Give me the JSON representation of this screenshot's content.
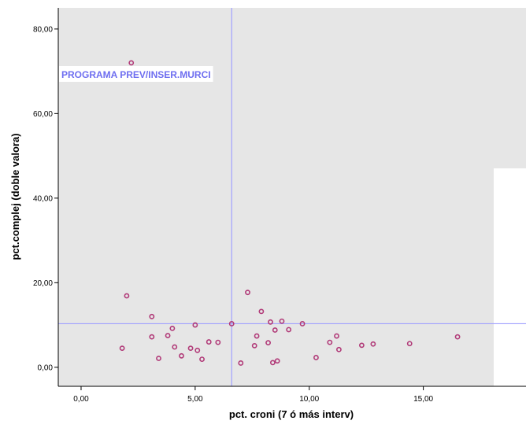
{
  "chart_data": {
    "type": "scatter",
    "xlabel": "pct. croni (7 ó más interv)",
    "ylabel": "pct.complej (doble valora)",
    "xlim": [
      -1.0,
      19.5
    ],
    "ylim": [
      -4.5,
      85.0
    ],
    "x_ticks": [
      {
        "value": 0,
        "label": "0,00"
      },
      {
        "value": 5,
        "label": "5,00"
      },
      {
        "value": 10,
        "label": "10,00"
      },
      {
        "value": 15,
        "label": "15,00"
      }
    ],
    "y_ticks": [
      {
        "value": 0,
        "label": "0,00"
      },
      {
        "value": 20,
        "label": "20,00"
      },
      {
        "value": 40,
        "label": "40,00"
      },
      {
        "value": 60,
        "label": "60,00"
      },
      {
        "value": 80,
        "label": "80,00"
      }
    ],
    "reference_lines": {
      "x": 6.6,
      "y": 10.3
    },
    "annotation": {
      "text": "PROGRAMA PREV/INSER.MURCI",
      "x": 2.2,
      "y": 72.0
    },
    "points": [
      {
        "x": 2.2,
        "y": 72.0
      },
      {
        "x": 1.8,
        "y": 4.5
      },
      {
        "x": 2.0,
        "y": 16.9
      },
      {
        "x": 3.1,
        "y": 12.0
      },
      {
        "x": 3.1,
        "y": 7.2
      },
      {
        "x": 3.4,
        "y": 2.1
      },
      {
        "x": 3.8,
        "y": 7.5
      },
      {
        "x": 4.0,
        "y": 9.2
      },
      {
        "x": 4.1,
        "y": 4.8
      },
      {
        "x": 4.4,
        "y": 2.7
      },
      {
        "x": 4.8,
        "y": 4.5
      },
      {
        "x": 5.0,
        "y": 10.0
      },
      {
        "x": 5.1,
        "y": 4.0
      },
      {
        "x": 5.3,
        "y": 1.9
      },
      {
        "x": 5.6,
        "y": 6.0
      },
      {
        "x": 6.0,
        "y": 5.9
      },
      {
        "x": 6.6,
        "y": 10.3
      },
      {
        "x": 7.0,
        "y": 1.0
      },
      {
        "x": 7.3,
        "y": 17.7
      },
      {
        "x": 7.6,
        "y": 5.1
      },
      {
        "x": 7.7,
        "y": 7.4
      },
      {
        "x": 7.9,
        "y": 13.2
      },
      {
        "x": 8.2,
        "y": 5.8
      },
      {
        "x": 8.3,
        "y": 10.7
      },
      {
        "x": 8.4,
        "y": 1.1
      },
      {
        "x": 8.5,
        "y": 8.8
      },
      {
        "x": 8.6,
        "y": 1.5
      },
      {
        "x": 8.8,
        "y": 10.9
      },
      {
        "x": 9.1,
        "y": 8.9
      },
      {
        "x": 9.7,
        "y": 10.3
      },
      {
        "x": 10.3,
        "y": 2.3
      },
      {
        "x": 10.9,
        "y": 5.9
      },
      {
        "x": 11.2,
        "y": 7.4
      },
      {
        "x": 11.3,
        "y": 4.2
      },
      {
        "x": 12.3,
        "y": 5.2
      },
      {
        "x": 12.8,
        "y": 5.5
      },
      {
        "x": 14.4,
        "y": 5.6
      },
      {
        "x": 16.5,
        "y": 7.2
      }
    ],
    "grid": false,
    "colors": {
      "plot_background": "#e6e6e6",
      "reference_line": "#a0a0ff",
      "marker": "#b13a78",
      "annotation_text": "#6e6ef0",
      "annotation_background": "#ffffff",
      "axis": "#000000"
    }
  }
}
